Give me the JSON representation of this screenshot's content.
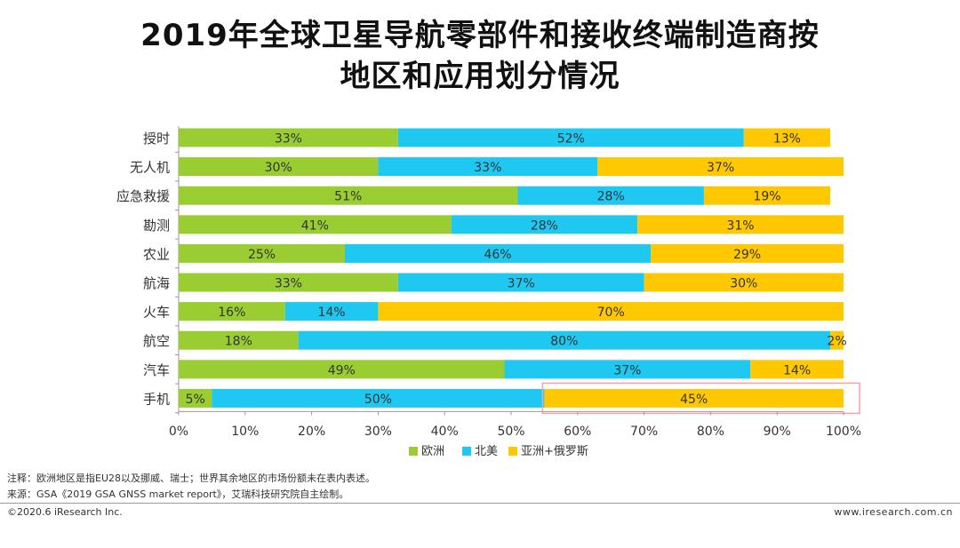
{
  "title_line1": "2019年全球卫星导航零部件和接收终端制造商按",
  "title_line2": "地区和应用划分情况",
  "colors": {
    "europe": "#9ACD32",
    "north_america": "#1EC8F0",
    "asia_russia": "#FFC800",
    "highlight_box": "#F2A7AE"
  },
  "chart_data": {
    "type": "bar",
    "orientation": "horizontal",
    "stacked": true,
    "categories": [
      "授时",
      "无人机",
      "应急救援",
      "勘测",
      "农业",
      "航海",
      "火车",
      "航空",
      "汽车",
      "手机"
    ],
    "series": [
      {
        "name": "欧洲",
        "values": [
          33,
          30,
          51,
          41,
          25,
          33,
          16,
          18,
          49,
          5
        ]
      },
      {
        "name": "北美",
        "values": [
          52,
          33,
          28,
          28,
          46,
          37,
          14,
          80,
          37,
          50
        ]
      },
      {
        "name": "亚洲+俄罗斯",
        "values": [
          13,
          37,
          19,
          31,
          29,
          30,
          70,
          2,
          14,
          45
        ]
      }
    ],
    "data_labels": [
      [
        "33%",
        "52%",
        "13%"
      ],
      [
        "30%",
        "33%",
        "37%"
      ],
      [
        "51%",
        "28%",
        "19%"
      ],
      [
        "41%",
        "28%",
        "31%"
      ],
      [
        "25%",
        "46%",
        "29%"
      ],
      [
        "33%",
        "37%",
        "30%"
      ],
      [
        "16%",
        "14%",
        "70%"
      ],
      [
        "18%",
        "80%",
        "2%"
      ],
      [
        "49%",
        "37%",
        "14%"
      ],
      [
        "5%",
        "50%",
        "45%"
      ]
    ],
    "x_ticks": [
      "0%",
      "10%",
      "20%",
      "30%",
      "40%",
      "50%",
      "60%",
      "70%",
      "80%",
      "90%",
      "100%"
    ],
    "xlim": [
      0,
      100
    ],
    "legend_position": "bottom-center",
    "highlighted_category": "手机",
    "highlighted_series": "亚洲+俄罗斯"
  },
  "note": "注释：欧洲地区是指EU28以及挪威、瑞士；世界其余地区的市场份额未在表内表述。",
  "source": "来源：GSA《2019 GSA GNSS market report》，艾瑞科技研究院自主绘制。",
  "copyright": "©2020.6 iResearch Inc.",
  "website": "www.iresearch.com.cn"
}
